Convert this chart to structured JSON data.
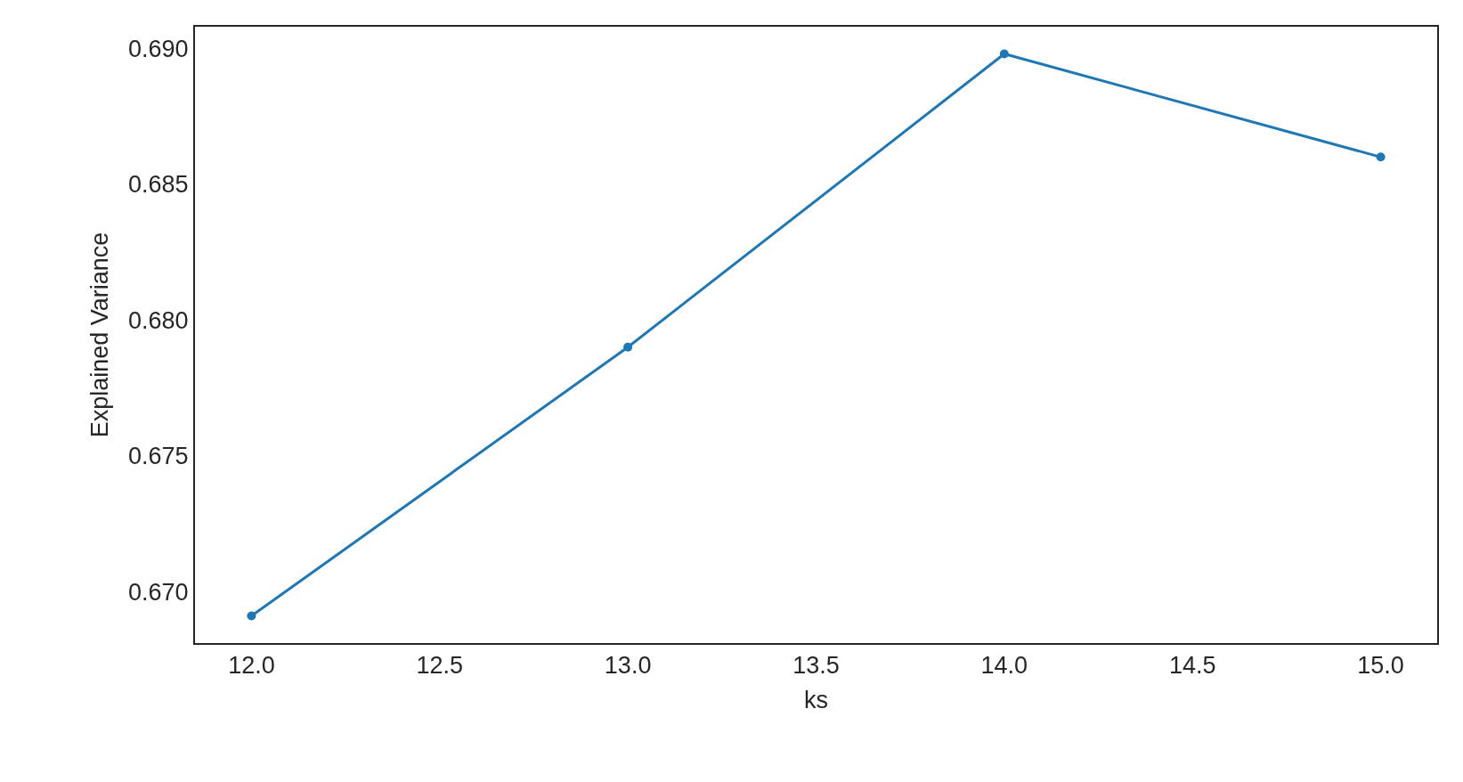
{
  "chart_data": {
    "type": "line",
    "xlabel": "ks",
    "ylabel": "Explained Variance",
    "x": [
      12,
      13,
      14,
      15
    ],
    "series": [
      {
        "color": "#1f77b4",
        "values": [
          0.6691,
          0.679,
          0.6898,
          0.686
        ]
      }
    ],
    "xlim": [
      11.85,
      15.15
    ],
    "xticks": [
      {
        "value": 12,
        "label": "12.0"
      },
      {
        "value": 12.5,
        "label": "12.5"
      },
      {
        "value": 13,
        "label": "13.0"
      },
      {
        "value": 13.5,
        "label": "13.5"
      },
      {
        "value": 14,
        "label": "14.0"
      },
      {
        "value": 14.5,
        "label": "14.5"
      },
      {
        "value": 15,
        "label": "15.0"
      }
    ],
    "ylim": [
      0.6681,
      0.6908
    ],
    "yticks": [
      {
        "value": 0.67,
        "label": "0.670"
      },
      {
        "value": 0.675,
        "label": "0.675"
      },
      {
        "value": 0.68,
        "label": "0.680"
      },
      {
        "value": 0.685,
        "label": "0.685"
      },
      {
        "value": 0.69,
        "label": "0.690"
      }
    ],
    "legend": false,
    "marker": "circle",
    "line_style": "solid"
  }
}
